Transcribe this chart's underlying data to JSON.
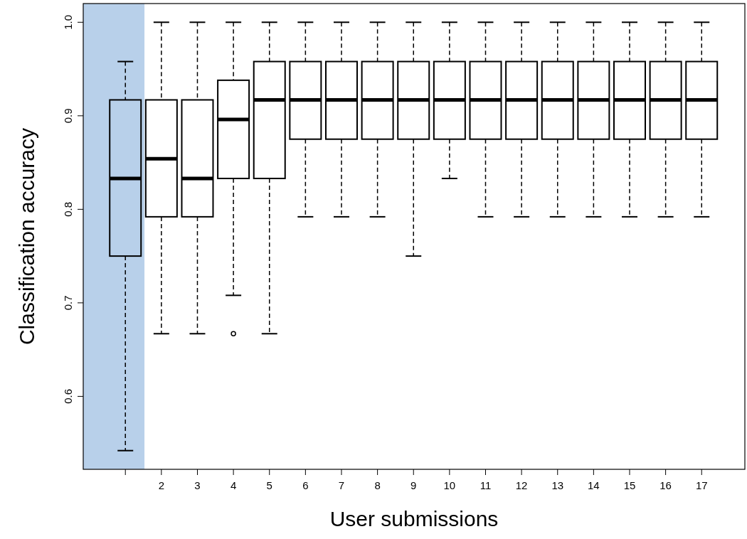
{
  "chart_data": {
    "type": "box",
    "xlabel": "User submissions",
    "ylabel": "Classification accuracy",
    "x": [
      1,
      2,
      3,
      4,
      5,
      6,
      7,
      8,
      9,
      10,
      11,
      12,
      13,
      14,
      15,
      16,
      17
    ],
    "xlim": [
      -0.17,
      18.2
    ],
    "xticks": [
      {
        "value": 1,
        "label": null
      },
      2,
      3,
      4,
      5,
      6,
      7,
      8,
      9,
      10,
      11,
      12,
      13,
      14,
      15,
      16,
      17
    ],
    "ylim": [
      0.522,
      1.02
    ],
    "yticks": [
      0.6,
      0.7,
      0.8,
      0.9,
      {
        "value": 1,
        "label": "1.0"
      }
    ],
    "grid": false,
    "bands": [
      {
        "axis": "x",
        "from": -0.17,
        "to": 1.53,
        "color": "#b8d0ea"
      }
    ],
    "series": [
      {
        "color": "#000000",
        "boxes": [
          {
            "low": 0.542,
            "q1": 0.75,
            "median": 0.833,
            "q3": 0.917,
            "high": 0.958
          },
          {
            "low": 0.667,
            "q1": 0.792,
            "median": 0.854,
            "q3": 0.917,
            "high": 1.0
          },
          {
            "low": 0.667,
            "q1": 0.792,
            "median": 0.833,
            "q3": 0.917,
            "high": 1.0
          },
          {
            "low": 0.708,
            "q1": 0.833,
            "median": 0.896,
            "q3": 0.938,
            "high": 1.0,
            "outliers": [
              0.667
            ]
          },
          {
            "low": 0.667,
            "q1": 0.833,
            "median": 0.917,
            "q3": 0.958,
            "high": 1.0
          },
          {
            "low": 0.792,
            "q1": 0.875,
            "median": 0.917,
            "q3": 0.958,
            "high": 1.0
          },
          {
            "low": 0.792,
            "q1": 0.875,
            "median": 0.917,
            "q3": 0.958,
            "high": 1.0
          },
          {
            "low": 0.792,
            "q1": 0.875,
            "median": 0.917,
            "q3": 0.958,
            "high": 1.0
          },
          {
            "low": 0.75,
            "q1": 0.875,
            "median": 0.917,
            "q3": 0.958,
            "high": 1.0
          },
          {
            "low": 0.833,
            "q1": 0.875,
            "median": 0.917,
            "q3": 0.958,
            "high": 1.0
          },
          {
            "low": 0.792,
            "q1": 0.875,
            "median": 0.917,
            "q3": 0.958,
            "high": 1.0
          },
          {
            "low": 0.792,
            "q1": 0.875,
            "median": 0.917,
            "q3": 0.958,
            "high": 1.0
          },
          {
            "low": 0.792,
            "q1": 0.875,
            "median": 0.917,
            "q3": 0.958,
            "high": 1.0
          },
          {
            "low": 0.792,
            "q1": 0.875,
            "median": 0.917,
            "q3": 0.958,
            "high": 1.0
          },
          {
            "low": 0.792,
            "q1": 0.875,
            "median": 0.917,
            "q3": 0.958,
            "high": 1.0
          },
          {
            "low": 0.792,
            "q1": 0.875,
            "median": 0.917,
            "q3": 0.958,
            "high": 1.0
          },
          {
            "low": 0.792,
            "q1": 0.875,
            "median": 0.917,
            "q3": 0.958,
            "high": 1.0
          }
        ]
      }
    ]
  }
}
